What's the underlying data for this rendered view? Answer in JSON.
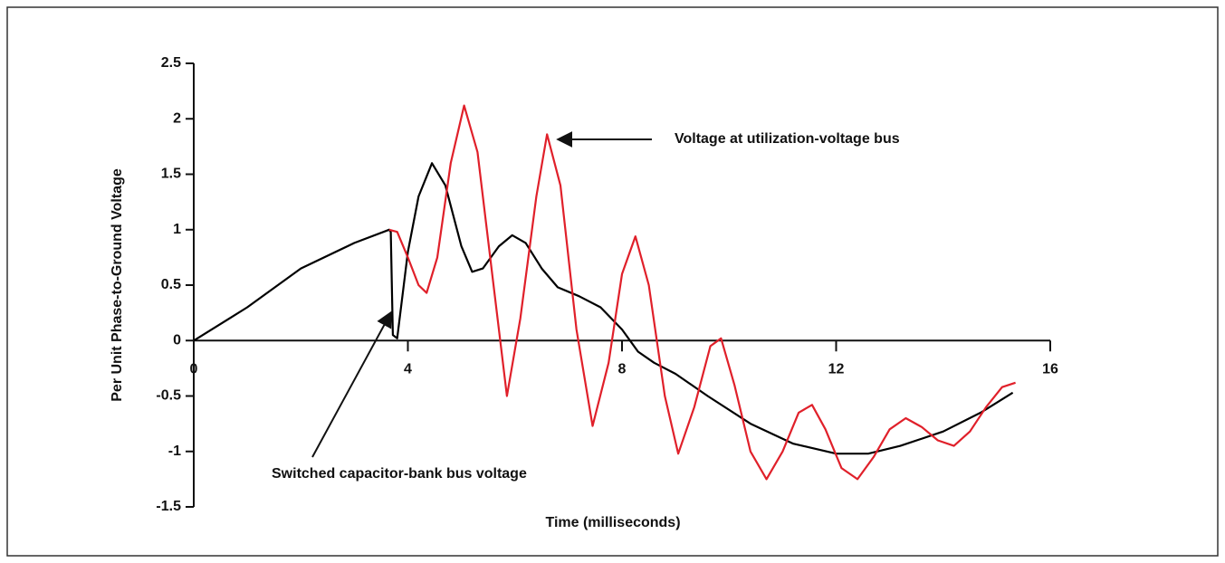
{
  "chart_data": {
    "type": "line",
    "x_label": "Time (milliseconds)",
    "y_label": "Per Unit Phase-to-Ground Voltage",
    "xlim": [
      0,
      16
    ],
    "xticks": [
      0,
      4,
      8,
      12,
      16
    ],
    "ylim": [
      -1.5,
      2.5
    ],
    "yticks": [
      2.5,
      2,
      1.5,
      1,
      0.5,
      0,
      -0.5,
      -1,
      -1.5
    ],
    "series": [
      {
        "name": "Switched capacitor-bank bus voltage",
        "color": "#000000",
        "x": [
          0,
          1,
          2,
          3,
          3.65,
          3.68,
          3.72,
          3.8,
          4,
          4.2,
          4.45,
          4.7,
          5,
          5.2,
          5.4,
          5.7,
          5.95,
          6.2,
          6.5,
          6.8,
          7.2,
          7.6,
          8,
          8.3,
          8.6,
          9,
          9.6,
          10.4,
          11.2,
          12,
          12.6,
          13.2,
          14,
          14.7,
          15.3
        ],
        "values": [
          0,
          0.3,
          0.65,
          0.88,
          1.0,
          0.98,
          0.05,
          0.02,
          0.8,
          1.3,
          1.6,
          1.4,
          0.85,
          0.62,
          0.65,
          0.85,
          0.95,
          0.88,
          0.65,
          0.48,
          0.4,
          0.3,
          0.1,
          -0.1,
          -0.2,
          -0.3,
          -0.5,
          -0.75,
          -0.93,
          -1.02,
          -1.02,
          -0.95,
          -0.82,
          -0.65,
          -0.47
        ]
      },
      {
        "name": "Voltage at utilization-voltage bus",
        "color": "#e0202a",
        "x": [
          3.65,
          3.8,
          4.0,
          4.2,
          4.35,
          4.55,
          4.8,
          5.05,
          5.3,
          5.6,
          5.85,
          6.1,
          6.4,
          6.6,
          6.85,
          7.15,
          7.45,
          7.75,
          8.0,
          8.25,
          8.5,
          8.8,
          9.05,
          9.35,
          9.65,
          9.85,
          10.1,
          10.4,
          10.7,
          11.0,
          11.3,
          11.55,
          11.8,
          12.1,
          12.4,
          12.7,
          13.0,
          13.3,
          13.6,
          13.9,
          14.2,
          14.5,
          14.8,
          15.1,
          15.35
        ],
        "values": [
          1.0,
          0.98,
          0.75,
          0.5,
          0.43,
          0.75,
          1.6,
          2.12,
          1.7,
          0.5,
          -0.5,
          0.2,
          1.3,
          1.86,
          1.4,
          0.1,
          -0.77,
          -0.2,
          0.6,
          0.94,
          0.5,
          -0.5,
          -1.02,
          -0.6,
          -0.05,
          0.02,
          -0.4,
          -1.0,
          -1.25,
          -1.0,
          -0.65,
          -0.58,
          -0.8,
          -1.15,
          -1.25,
          -1.05,
          -0.8,
          -0.7,
          -0.78,
          -0.9,
          -0.95,
          -0.82,
          -0.6,
          -0.42,
          -0.38
        ]
      }
    ]
  }
}
